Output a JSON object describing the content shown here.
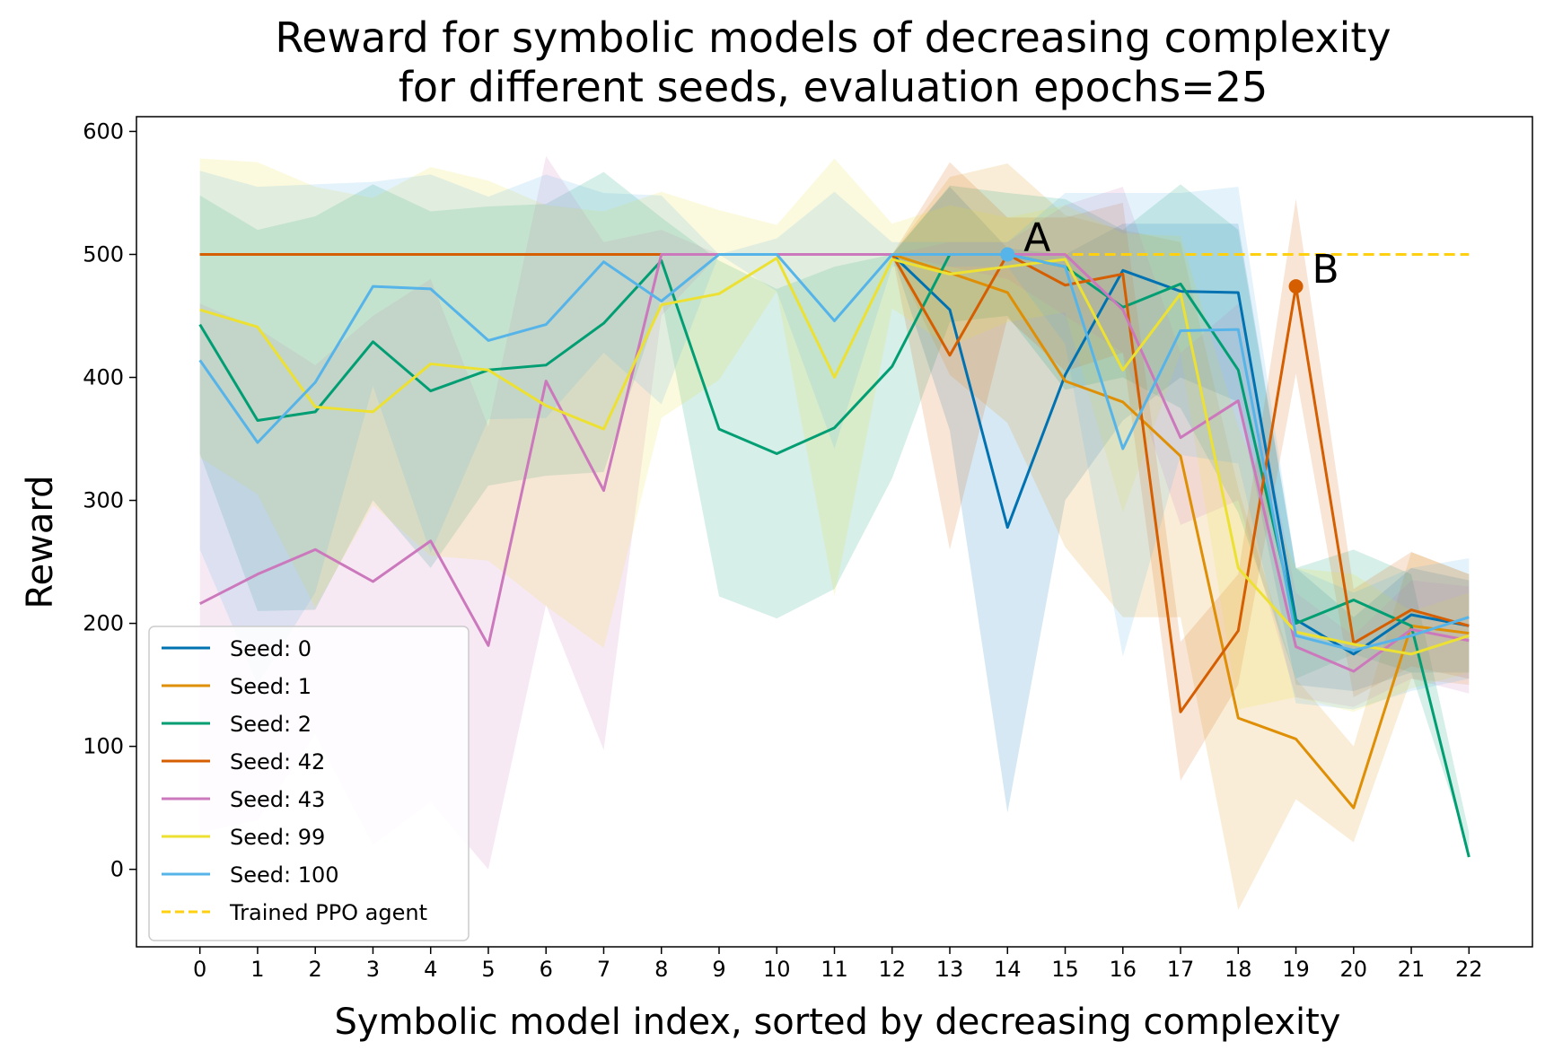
{
  "chart_data": {
    "type": "line",
    "title": "Reward for symbolic models of decreasing complexity",
    "subtitle": "for different seeds, evaluation epochs=25",
    "xlabel": "Symbolic model index, sorted by decreasing complexity",
    "ylabel": "Reward",
    "xlim": [
      -1.1,
      23.1
    ],
    "ylim": [
      -63,
      612
    ],
    "grid": false,
    "legend_position": "lower-left",
    "x": [
      0,
      1,
      2,
      3,
      4,
      5,
      6,
      7,
      8,
      9,
      10,
      11,
      12,
      13,
      14,
      15,
      16,
      17,
      18,
      19,
      20,
      21,
      22
    ],
    "xticks": [
      "0",
      "1",
      "2",
      "3",
      "4",
      "5",
      "6",
      "7",
      "8",
      "9",
      "10",
      "11",
      "12",
      "13",
      "14",
      "15",
      "16",
      "17",
      "18",
      "19",
      "20",
      "21",
      "22"
    ],
    "yticks": [
      "0",
      "100",
      "200",
      "300",
      "400",
      "500",
      "600"
    ],
    "ytick_values": [
      0,
      100,
      200,
      300,
      400,
      500,
      600
    ],
    "series": [
      {
        "name": "Seed: 0",
        "color": "#0072b2",
        "values": [
          500,
          500,
          500,
          500,
          500,
          500,
          500,
          500,
          500,
          500,
          500,
          500,
          500,
          455,
          278,
          402,
          487,
          470,
          469,
          203,
          175,
          207,
          198
        ],
        "lower": [
          500,
          500,
          500,
          500,
          500,
          500,
          500,
          500,
          500,
          500,
          500,
          500,
          500,
          357,
          46,
          300,
          365,
          400,
          380,
          150,
          145,
          160,
          160
        ],
        "upper": [
          500,
          500,
          500,
          500,
          500,
          500,
          500,
          500,
          500,
          500,
          500,
          500,
          500,
          555,
          505,
          500,
          525,
          525,
          525,
          245,
          205,
          245,
          235
        ]
      },
      {
        "name": "Seed: 1",
        "color": "#de8f05",
        "values": [
          500,
          500,
          500,
          500,
          500,
          500,
          500,
          500,
          500,
          500,
          500,
          500,
          500,
          485,
          469,
          397,
          380,
          336,
          123,
          106,
          50,
          198,
          192
        ],
        "lower": [
          500,
          500,
          500,
          500,
          500,
          500,
          500,
          500,
          500,
          500,
          500,
          500,
          500,
          402,
          363,
          262,
          205,
          205,
          -33,
          57,
          22,
          155,
          150
        ],
        "upper": [
          500,
          500,
          500,
          500,
          500,
          500,
          500,
          500,
          500,
          500,
          500,
          500,
          500,
          563,
          574,
          532,
          520,
          510,
          310,
          155,
          100,
          258,
          240
        ]
      },
      {
        "name": "Seed: 2",
        "color": "#029e73",
        "values": [
          443,
          365,
          372,
          429,
          389,
          406,
          410,
          444,
          495,
          358,
          338,
          359,
          409,
          500,
          500,
          490,
          457,
          476,
          406,
          200,
          219,
          198,
          10
        ],
        "lower": [
          338,
          210,
          211,
          300,
          245,
          312,
          320,
          323,
          464,
          222,
          204,
          228,
          318,
          445,
          450,
          390,
          400,
          375,
          290,
          155,
          175,
          160,
          15
        ],
        "upper": [
          548,
          520,
          531,
          557,
          535,
          539,
          541,
          567,
          530,
          495,
          472,
          490,
          500,
          556,
          550,
          545,
          520,
          557,
          520,
          245,
          260,
          240,
          30
        ]
      },
      {
        "name": "Seed: 42",
        "color": "#d55e00",
        "values": [
          500,
          500,
          500,
          500,
          500,
          500,
          500,
          500,
          500,
          500,
          500,
          500,
          500,
          418,
          500,
          475,
          484,
          128,
          194,
          474,
          184,
          211,
          198
        ],
        "lower": [
          500,
          500,
          500,
          500,
          500,
          500,
          500,
          500,
          500,
          500,
          500,
          500,
          500,
          260,
          448,
          405,
          420,
          72,
          150,
          403,
          140,
          165,
          155
        ],
        "upper": [
          500,
          500,
          500,
          500,
          500,
          500,
          500,
          500,
          500,
          500,
          500,
          500,
          500,
          575,
          530,
          530,
          542,
          185,
          240,
          545,
          228,
          258,
          240
        ]
      },
      {
        "name": "Seed: 43",
        "color": "#cc78bc",
        "values": [
          216,
          240,
          260,
          234,
          267,
          182,
          397,
          308,
          500,
          500,
          500,
          500,
          500,
          500,
          500,
          500,
          455,
          351,
          381,
          181,
          161,
          195,
          186
        ],
        "lower": [
          30,
          40,
          110,
          20,
          55,
          0,
          215,
          97,
          450,
          500,
          500,
          500,
          500,
          490,
          480,
          450,
          420,
          280,
          300,
          140,
          132,
          155,
          143
        ],
        "upper": [
          460,
          440,
          410,
          450,
          480,
          360,
          580,
          510,
          520,
          500,
          500,
          500,
          500,
          510,
          510,
          540,
          555,
          420,
          460,
          225,
          190,
          235,
          230
        ]
      },
      {
        "name": "Seed: 99",
        "color": "#ece133",
        "values": [
          455,
          441,
          376,
          372,
          411,
          406,
          377,
          358,
          459,
          468,
          497,
          400,
          496,
          484,
          490,
          496,
          406,
          468,
          245,
          193,
          183,
          175,
          190
        ],
        "lower": [
          335,
          305,
          213,
          296,
          255,
          251,
          214,
          180,
          367,
          398,
          470,
          222,
          456,
          425,
          445,
          453,
          290,
          420,
          130,
          140,
          128,
          147,
          160
        ],
        "upper": [
          578,
          575,
          555,
          546,
          571,
          560,
          540,
          535,
          551,
          536,
          524,
          578,
          525,
          540,
          530,
          540,
          517,
          515,
          360,
          245,
          240,
          210,
          225
        ]
      },
      {
        "name": "Seed: 100",
        "color": "#56b4e9",
        "values": [
          414,
          347,
          396,
          474,
          472,
          430,
          443,
          494,
          462,
          500,
          500,
          446,
          500,
          500,
          500,
          490,
          342,
          438,
          439,
          190,
          178,
          190,
          205
        ],
        "lower": [
          260,
          150,
          225,
          393,
          257,
          366,
          367,
          420,
          378,
          500,
          470,
          342,
          490,
          490,
          490,
          427,
          173,
          337,
          330,
          135,
          130,
          145,
          155
        ],
        "upper": [
          568,
          555,
          557,
          559,
          565,
          547,
          565,
          550,
          548,
          500,
          513,
          551,
          510,
          510,
          510,
          550,
          550,
          550,
          555,
          245,
          225,
          245,
          253
        ]
      }
    ],
    "reference_line": {
      "name": "Trained PPO agent",
      "value": 500,
      "color": "#ffd00f",
      "style": "dashed"
    },
    "annotations": [
      {
        "text": "A",
        "x": 14,
        "y": 500,
        "color": "#56b4e9"
      },
      {
        "text": "B",
        "x": 19,
        "y": 474,
        "color": "#d55e00"
      }
    ]
  }
}
